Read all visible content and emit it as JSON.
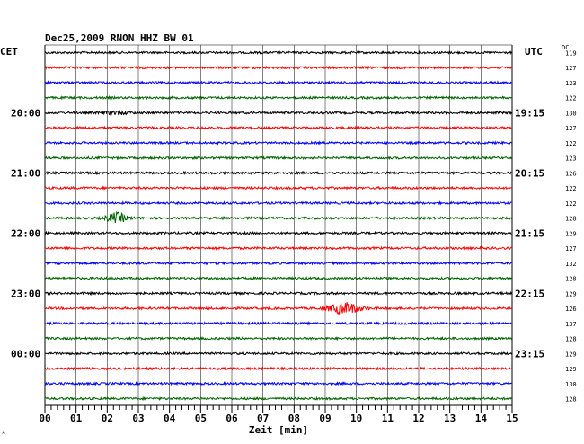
{
  "chart_data": {
    "type": "line",
    "title": "Dec25,2009   RNON HHZ BW 01",
    "left_label": "CET",
    "right_label": "UTC",
    "dc_label": "DC",
    "xlabel": "Zeit [min]",
    "xlim": [
      0,
      15
    ],
    "x_ticks": [
      "00",
      "01",
      "02",
      "03",
      "04",
      "05",
      "06",
      "07",
      "08",
      "09",
      "10",
      "11",
      "12",
      "13",
      "14",
      "15"
    ],
    "trace_count": 24,
    "trace_colors": [
      "#000000",
      "#ff0000",
      "#0000ff",
      "#006400"
    ],
    "left_hour_labels": [
      {
        "trace": 4,
        "label": "20:00"
      },
      {
        "trace": 8,
        "label": "21:00"
      },
      {
        "trace": 12,
        "label": "22:00"
      },
      {
        "trace": 16,
        "label": "23:00"
      },
      {
        "trace": 20,
        "label": "00:00"
      }
    ],
    "right_hour_labels": [
      {
        "trace": 4,
        "label": "19:15"
      },
      {
        "trace": 8,
        "label": "20:15"
      },
      {
        "trace": 12,
        "label": "21:15"
      },
      {
        "trace": 16,
        "label": "22:15"
      },
      {
        "trace": 20,
        "label": "23:15"
      }
    ],
    "dc_values": [
      "119",
      "127",
      "123",
      "122",
      "130",
      "127",
      "122",
      "123",
      "126",
      "122",
      "122",
      "128",
      "129",
      "127",
      "132",
      "128",
      "129",
      "126",
      "137",
      "128",
      "129",
      "129",
      "130",
      "128"
    ],
    "events": [
      {
        "trace": 4,
        "center_min": 2.3,
        "width_min": 1.2,
        "amplitude": 1.5
      },
      {
        "trace": 11,
        "center_min": 2.3,
        "width_min": 0.9,
        "amplitude": 5.5
      },
      {
        "trace": 17,
        "center_min": 9.6,
        "width_min": 1.4,
        "amplitude": 6.0
      }
    ],
    "grid": true,
    "corner_mark": "^"
  }
}
